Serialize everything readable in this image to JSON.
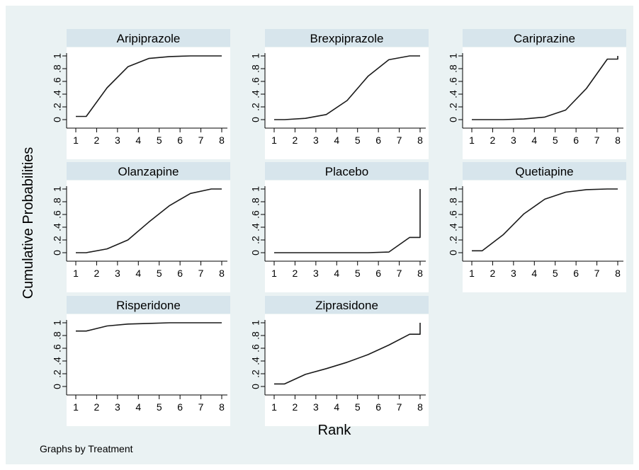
{
  "figure": {
    "ylabel": "Cumulative Probabilities",
    "xlabel": "Rank",
    "note": "Graphs by Treatment",
    "colors": {
      "outer_bg": "#eaf2f3",
      "panel_bg": "#ffffff",
      "strip_bg": "#d7e5ec",
      "line": "#1a1a1a",
      "axis": "#000000"
    }
  },
  "chart_data": {
    "type": "line",
    "layout": "3x3 small multiples",
    "xlim": [
      0.6,
      8.4
    ],
    "ylim": [
      -0.08,
      1.08
    ],
    "x_ticks": [
      "1",
      "2",
      "3",
      "4",
      "5",
      "6",
      "7",
      "8"
    ],
    "x_tick_values": [
      1,
      2,
      3,
      4,
      5,
      6,
      7,
      8
    ],
    "y_ticks": [
      "0",
      ".2",
      ".4",
      ".6",
      ".8",
      "1"
    ],
    "y_tick_values": [
      0,
      0.2,
      0.4,
      0.6,
      0.8,
      1
    ],
    "grid": false,
    "panels": [
      {
        "name": "Aripiprazole",
        "x": [
          1,
          1.5,
          2.5,
          3.5,
          4.5,
          5.5,
          6.5,
          7.5,
          8
        ],
        "y": [
          0.05,
          0.05,
          0.5,
          0.83,
          0.96,
          0.99,
          1.0,
          1.0,
          1.0
        ]
      },
      {
        "name": "Brexpiprazole",
        "x": [
          1,
          1.5,
          2.5,
          3.5,
          4.5,
          5.5,
          6.5,
          7.5,
          8
        ],
        "y": [
          0.0,
          0.0,
          0.02,
          0.08,
          0.3,
          0.68,
          0.94,
          1.0,
          1.0
        ]
      },
      {
        "name": "Cariprazine",
        "x": [
          1,
          1.5,
          2.5,
          3.5,
          4.5,
          5.5,
          6.5,
          7.5,
          8,
          8
        ],
        "y": [
          0.0,
          0.0,
          0.0,
          0.01,
          0.04,
          0.15,
          0.49,
          0.95,
          0.95,
          1.0
        ]
      },
      {
        "name": "Olanzapine",
        "x": [
          1,
          1.5,
          2.5,
          3.5,
          4.5,
          5.5,
          6.5,
          7.5,
          8
        ],
        "y": [
          0.0,
          0.0,
          0.06,
          0.2,
          0.48,
          0.74,
          0.93,
          1.0,
          1.0
        ]
      },
      {
        "name": "Placebo",
        "x": [
          1,
          1.5,
          2.5,
          3.5,
          4.5,
          5.5,
          6.5,
          7.5,
          8,
          8
        ],
        "y": [
          0.0,
          0.0,
          0.0,
          0.0,
          0.0,
          0.0,
          0.01,
          0.24,
          0.24,
          1.0
        ]
      },
      {
        "name": "Quetiapine",
        "x": [
          1,
          1.5,
          2.5,
          3.5,
          4.5,
          5.5,
          6.5,
          7.5,
          8
        ],
        "y": [
          0.03,
          0.03,
          0.28,
          0.61,
          0.84,
          0.95,
          0.99,
          1.0,
          1.0
        ]
      },
      {
        "name": "Risperidone",
        "x": [
          1,
          1.5,
          2.5,
          3.5,
          4.5,
          5.5,
          6.5,
          7.5,
          8
        ],
        "y": [
          0.87,
          0.87,
          0.95,
          0.98,
          0.99,
          1.0,
          1.0,
          1.0,
          1.0
        ]
      },
      {
        "name": "Ziprasidone",
        "x": [
          1,
          1.5,
          2.5,
          3.5,
          4.5,
          5.5,
          6.5,
          7.5,
          8,
          8
        ],
        "y": [
          0.04,
          0.04,
          0.19,
          0.28,
          0.38,
          0.5,
          0.65,
          0.82,
          0.82,
          1.0
        ]
      }
    ]
  }
}
